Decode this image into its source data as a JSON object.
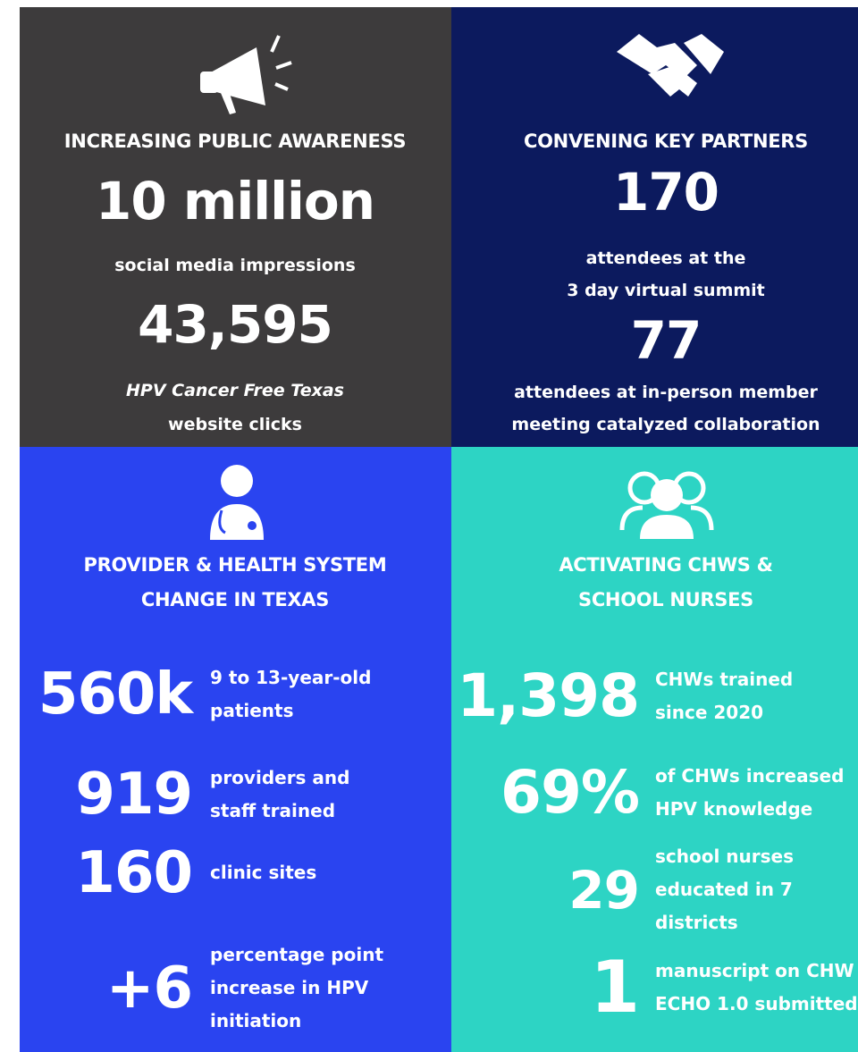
{
  "panels": [
    {
      "title": [
        "INCREASING PUBLIC AWARENESS"
      ],
      "stats": [
        {
          "number": "10 million",
          "lines": [
            "social media impressions"
          ]
        },
        {
          "number": "43,595",
          "italic": "HPV Cancer Free Texas",
          "lines": [
            "website clicks"
          ]
        }
      ]
    },
    {
      "title": [
        "CONVENING KEY PARTNERS"
      ],
      "stats": [
        {
          "number": "170",
          "lines": [
            "attendees at the",
            "3 day virtual summit"
          ]
        },
        {
          "number": "77",
          "lines": [
            "attendees at in-person member",
            "meeting catalyzed collaboration"
          ]
        }
      ]
    },
    {
      "title": [
        "PROVIDER & HEALTH SYSTEM",
        "CHANGE IN TEXAS"
      ],
      "stats": [
        {
          "number": "560k",
          "lines": [
            "9 to 13-year-old",
            "patients"
          ]
        },
        {
          "number": "919",
          "lines": [
            "providers and",
            "staff trained"
          ]
        },
        {
          "number": "160",
          "lines": [
            "clinic sites"
          ]
        },
        {
          "number": "+6",
          "lines": [
            "percentage point",
            "increase in HPV",
            "initiation"
          ]
        }
      ]
    },
    {
      "title": [
        "ACTIVATING CHWS &",
        "SCHOOL NURSES"
      ],
      "stats": [
        {
          "number": "1,398",
          "lines": [
            "CHWs trained",
            "since 2020"
          ]
        },
        {
          "number": "69%",
          "lines": [
            "of CHWs increased",
            "HPV knowledge"
          ]
        },
        {
          "number": "29",
          "lines": [
            "school  nurses",
            "educated in 7",
            "districts"
          ]
        },
        {
          "number": "1",
          "lines": [
            "manuscript on CHW",
            "ECHO 1.0 submitted"
          ]
        }
      ]
    }
  ]
}
